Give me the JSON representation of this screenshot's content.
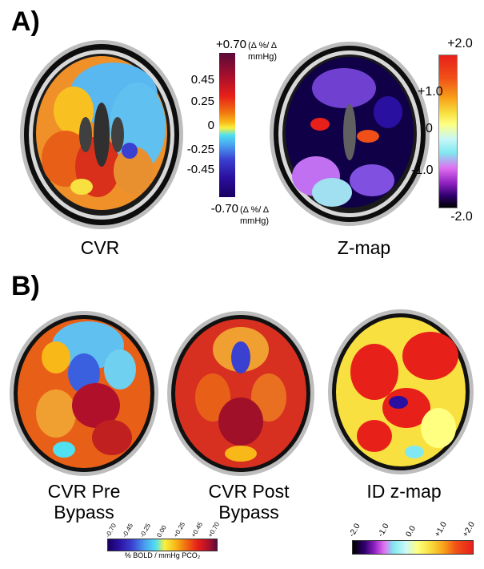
{
  "panel_a": {
    "label": "A)",
    "cvr_caption": "CVR",
    "zmap_caption": "Z-map",
    "cvr_scale": {
      "top": "+0.70",
      "top_unit": "(Δ %/ Δ mmHg)",
      "ticks": [
        "0.45",
        "0.25",
        "0",
        "-0.25",
        "-0.45"
      ],
      "bottom": "-0.70",
      "bottom_unit": "(Δ %/ Δ mmHg)",
      "colors": [
        "#5a0a3a",
        "#b0102a",
        "#e8201a",
        "#f06a10",
        "#f8b818",
        "#f8f040",
        "#50e0f0",
        "#4aa0f0",
        "#3a40d0",
        "#2a10a0",
        "#1a0060"
      ]
    },
    "z_scale": {
      "ticks": [
        "+2.0",
        "+1.0",
        "0",
        "-1.0",
        "-2.0"
      ],
      "colors": [
        "#e8201a",
        "#f05018",
        "#f8a018",
        "#f8e040",
        "#ffff80",
        "#c8f8f8",
        "#80e8f0",
        "#e070f0",
        "#9020c0",
        "#300070",
        "#000000"
      ]
    }
  },
  "panel_b": {
    "label": "B)",
    "captions": [
      "CVR Pre Bypass",
      "CVR Post Bypass",
      "ID z-map"
    ],
    "cvr_scale": {
      "ticks": [
        "-0.70",
        "-0.45",
        "-0.25",
        "0.00",
        "+0.25",
        "+0.45",
        "+0.70"
      ],
      "unit": "% BOLD / mmHg PCO₂",
      "colors": [
        "#1a0060",
        "#2a10a0",
        "#3a40d0",
        "#4aa0f0",
        "#50e0f0",
        "#f8f040",
        "#f8b818",
        "#f06a10",
        "#e8201a",
        "#b0102a",
        "#5a0a3a"
      ]
    },
    "z_scale": {
      "ticks": [
        "-2.0",
        "-1.0",
        "0.0",
        "+1.0",
        "+2.0"
      ],
      "colors": [
        "#000000",
        "#300070",
        "#9020c0",
        "#e070f0",
        "#80e8f0",
        "#c8f8f8",
        "#ffff80",
        "#f8e040",
        "#f8a018",
        "#f05018",
        "#e8201a"
      ]
    }
  }
}
